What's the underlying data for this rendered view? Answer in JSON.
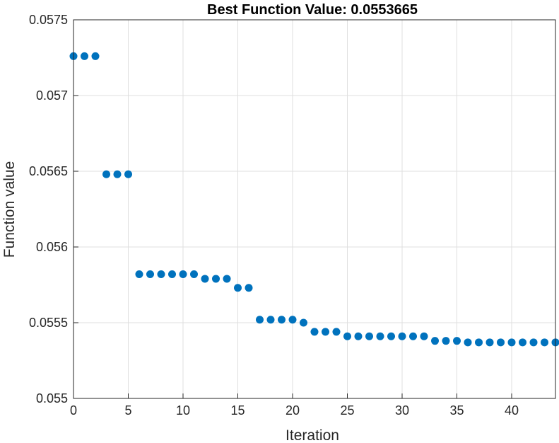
{
  "chart_data": {
    "type": "scatter",
    "title": "Best Function Value: 0.0553665",
    "xlabel": "Iteration",
    "ylabel": "Function value",
    "xlim": [
      0,
      44
    ],
    "ylim": [
      0.055,
      0.0575
    ],
    "xticks": [
      0,
      5,
      10,
      15,
      20,
      25,
      30,
      35,
      40
    ],
    "xtick_labels": [
      "0",
      "5",
      "10",
      "15",
      "20",
      "25",
      "30",
      "35",
      "40"
    ],
    "yticks": [
      0.055,
      0.0555,
      0.056,
      0.0565,
      0.057,
      0.0575
    ],
    "ytick_labels": [
      "0.055",
      "0.0555",
      "0.056",
      "0.0565",
      "0.057",
      "0.0575"
    ],
    "grid": true,
    "marker_color": "#0072BD",
    "x": [
      0,
      1,
      2,
      3,
      4,
      5,
      6,
      7,
      8,
      9,
      10,
      11,
      12,
      13,
      14,
      15,
      16,
      17,
      18,
      19,
      20,
      21,
      22,
      23,
      24,
      25,
      26,
      27,
      28,
      29,
      30,
      31,
      32,
      33,
      34,
      35,
      36,
      37,
      38,
      39,
      40,
      41,
      42,
      43,
      44
    ],
    "y": [
      0.05726,
      0.05726,
      0.05726,
      0.05648,
      0.05648,
      0.05648,
      0.05582,
      0.05582,
      0.05582,
      0.05582,
      0.05582,
      0.05582,
      0.05579,
      0.05579,
      0.05579,
      0.05573,
      0.05573,
      0.05552,
      0.05552,
      0.05552,
      0.05552,
      0.0555,
      0.05544,
      0.05544,
      0.05544,
      0.05541,
      0.05541,
      0.05541,
      0.05541,
      0.05541,
      0.05541,
      0.05541,
      0.05541,
      0.05538,
      0.05538,
      0.05538,
      0.05537,
      0.05537,
      0.05537,
      0.05537,
      0.05537,
      0.05537,
      0.05537,
      0.05537,
      0.05537
    ]
  }
}
